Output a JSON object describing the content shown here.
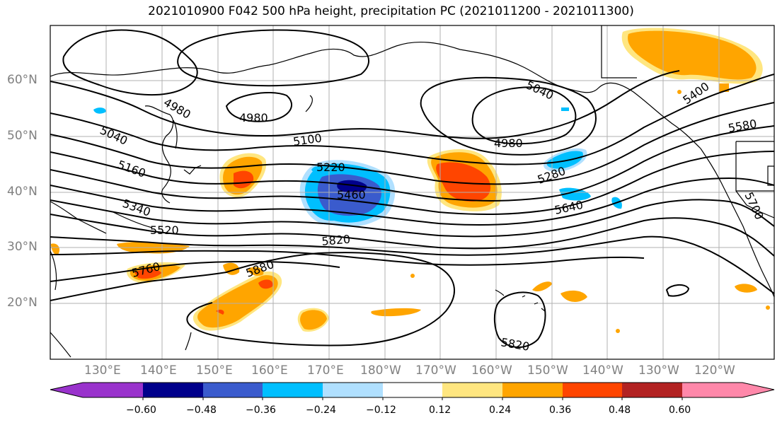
{
  "title": "2021010900 F042 500 hPa height, precipitation PC (2021011200 - 2021011300)",
  "lat_labels": [
    "60°N",
    "50°N",
    "40°N",
    "30°N",
    "20°N"
  ],
  "lon_labels": [
    "130°E",
    "140°E",
    "150°E",
    "160°E",
    "170°E",
    "180°W",
    "170°W",
    "160°W",
    "150°W",
    "140°W",
    "130°W",
    "120°W"
  ],
  "colorbar": {
    "tick_labels": [
      "−0.60",
      "−0.48",
      "−0.36",
      "−0.24",
      "−0.12",
      "0.12",
      "0.24",
      "0.36",
      "0.48",
      "0.60"
    ],
    "colors": [
      "#9932cc",
      "#00008b",
      "#3a5bcd",
      "#00bfff",
      "#b0e0ff",
      "#ffffff",
      "#ffe680",
      "#ffa500",
      "#ff4500",
      "#b22222",
      "#ff88aa"
    ]
  },
  "contour_labels": [
    "4980",
    "4980",
    "4980",
    "5040",
    "5040",
    "5100",
    "5160",
    "5220",
    "5280",
    "5340",
    "5400",
    "5460",
    "5520",
    "5580",
    "5640",
    "5700",
    "5760",
    "5820",
    "5820",
    "5880"
  ],
  "colors": {
    "grid": "#b0b0b0",
    "contour": "#000000",
    "coast": "#000000",
    "positive_light": "#ffe680",
    "positive_mid": "#ffa500",
    "positive_strong": "#ff4500",
    "negative_light": "#b0e0ff",
    "negative_mid": "#00bfff",
    "negative_strong": "#3a5bcd",
    "negative_darkest": "#00008b"
  }
}
